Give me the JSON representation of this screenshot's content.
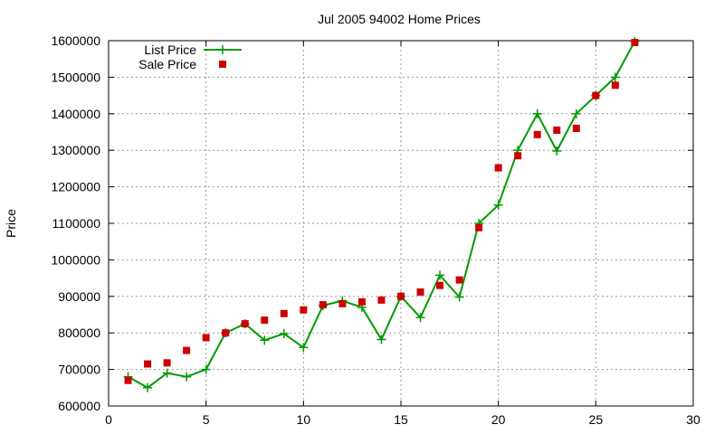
{
  "chart_data": {
    "type": "line",
    "title": "Jul 2005 94002 Home Prices",
    "xlabel": "",
    "ylabel": "Price",
    "xlim": [
      0,
      30
    ],
    "ylim": [
      600000,
      1600000
    ],
    "grid": true,
    "legend_position": "top-left",
    "x_ticks": [
      "0",
      "5",
      "10",
      "15",
      "20",
      "25",
      "30"
    ],
    "y_ticks": [
      "600000",
      "700000",
      "800000",
      "900000",
      "1000000",
      "1100000",
      "1200000",
      "1300000",
      "1400000",
      "1500000",
      "1600000"
    ],
    "x": [
      1,
      2,
      3,
      4,
      5,
      6,
      7,
      8,
      9,
      10,
      11,
      12,
      13,
      14,
      15,
      16,
      17,
      18,
      19,
      20,
      21,
      22,
      23,
      24,
      25,
      26,
      27
    ],
    "series": [
      {
        "name": "List Price",
        "style": "line-plus",
        "color": "#009900",
        "values": [
          680000,
          650000,
          690000,
          680000,
          700000,
          800000,
          825000,
          780000,
          798000,
          760000,
          875000,
          888000,
          870000,
          782000,
          900000,
          842000,
          958000,
          898000,
          1100000,
          1150000,
          1300000,
          1400000,
          1298000,
          1400000,
          1450000,
          1500000,
          1598000
        ]
      },
      {
        "name": "Sale Price",
        "style": "square-points",
        "color": "#cc0000",
        "values": [
          670000,
          715000,
          718000,
          752000,
          787000,
          800000,
          825000,
          835000,
          853000,
          863000,
          877000,
          880000,
          885000,
          890000,
          900000,
          912000,
          930000,
          945000,
          1088000,
          1252000,
          1285000,
          1343000,
          1355000,
          1360000,
          1450000,
          1478000,
          1595000
        ]
      }
    ]
  }
}
